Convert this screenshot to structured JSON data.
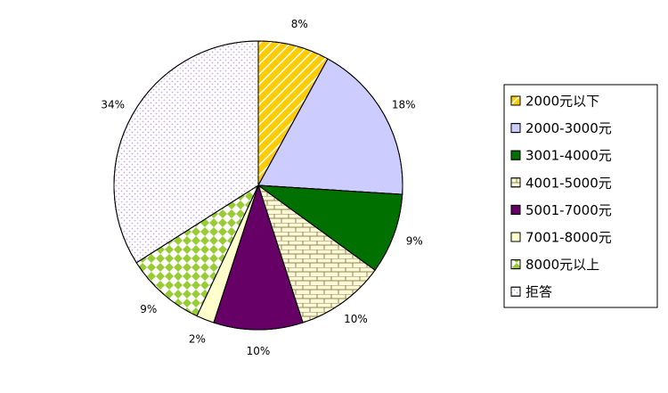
{
  "chart_data": {
    "type": "pie",
    "categories": [
      "2000元以下",
      "2000-3000元",
      "3001-4000元",
      "4001-5000元",
      "5001-7000元",
      "7001-8000元",
      "8000元以上",
      "拒答"
    ],
    "values": [
      8,
      18,
      9,
      10,
      10,
      2,
      9,
      34
    ],
    "value_labels": [
      "8%",
      "18%",
      "9%",
      "10%",
      "10%",
      "2%",
      "9%",
      "34%"
    ],
    "colors": [
      "#ffcc00",
      "#ccccff",
      "#007000",
      "#fff8d8",
      "#660066",
      "#ffffcc",
      "#99cc33",
      "#ffffff"
    ],
    "legend": "right"
  }
}
